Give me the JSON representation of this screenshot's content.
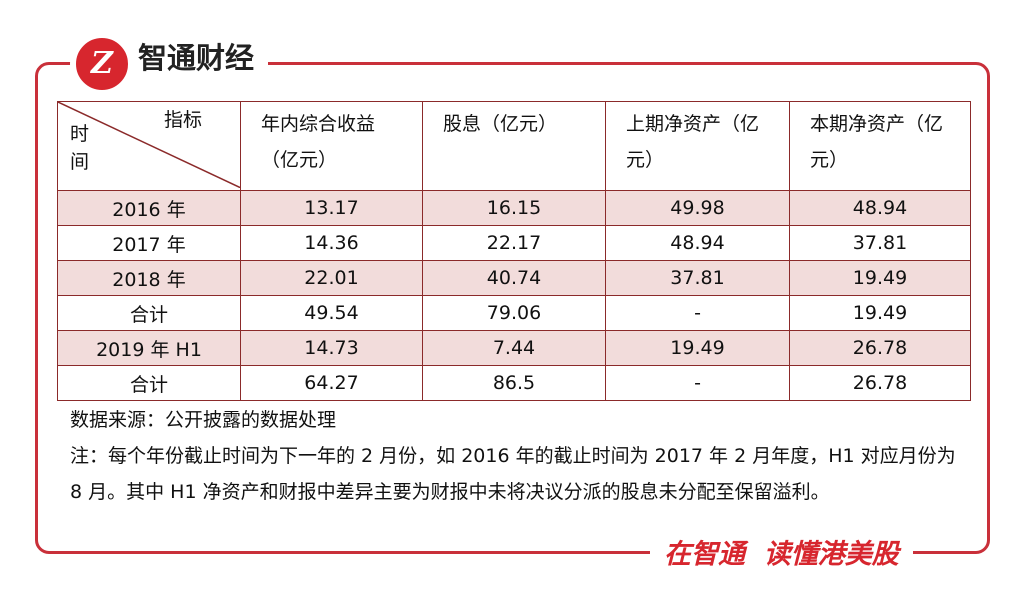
{
  "header": {
    "brand": "智通财经"
  },
  "table": {
    "corner": {
      "top": "指标",
      "bottom": "时间"
    },
    "columns": [
      "年内综合收益（亿元）",
      "股息（亿元）",
      "上期净资产（亿元）",
      "本期净资产（亿元）"
    ],
    "rows": [
      [
        "2016 年",
        13.17,
        16.15,
        49.98,
        48.94
      ],
      [
        "2017 年",
        14.36,
        22.17,
        48.94,
        37.81
      ],
      [
        "2018 年",
        22.01,
        40.74,
        37.81,
        19.49
      ],
      [
        "合计",
        49.54,
        79.06,
        "-",
        19.49
      ],
      [
        "2019 年 H1",
        14.73,
        7.44,
        19.49,
        26.78
      ],
      [
        "合计",
        64.27,
        86.5,
        "-",
        26.78
      ]
    ]
  },
  "source": "数据来源：公开披露的数据处理",
  "note": "注：每个年份截止时间为下一年的 2 月份，如 2016 年的截止时间为 2017 年 2 月年度，H1 对应月份为 8 月。其中 H1 净资产和财报中差异主要为财报中未将决议分派的股息未分配至保留溢利。",
  "footer": {
    "slogan": "在智通  读懂港美股"
  }
}
